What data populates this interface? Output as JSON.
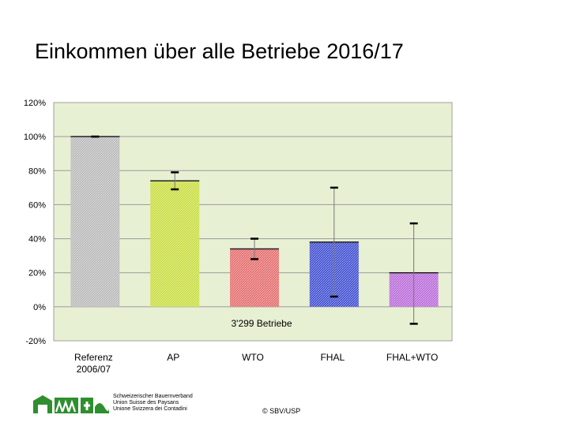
{
  "title": "Einkommen über alle Betriebe 2016/17",
  "chart_data": {
    "type": "bar",
    "categories": [
      "Referenz 2006/07",
      "AP",
      "WTO",
      "FHAL",
      "FHAL+WTO"
    ],
    "category_lines": [
      [
        "Referenz",
        "2006/07"
      ],
      [
        "AP"
      ],
      [
        "WTO"
      ],
      [
        "FHAL"
      ],
      [
        "FHAL+WTO"
      ]
    ],
    "values": [
      100,
      74,
      34,
      38,
      20
    ],
    "error_high": [
      100,
      79,
      40,
      70,
      49
    ],
    "error_low": [
      100,
      69,
      28,
      6,
      -10
    ],
    "colors": [
      "#b8b8b8",
      "#c8dc3c",
      "#e46a6a",
      "#3c4cd0",
      "#b868d8"
    ],
    "ylim": [
      -20,
      120
    ],
    "yticks": [
      "120%",
      "100%",
      "80%",
      "60%",
      "40%",
      "20%",
      "0%",
      "-20%"
    ],
    "ytick_values": [
      120,
      100,
      80,
      60,
      40,
      20,
      0,
      -20
    ],
    "annotation": "3'299 Betriebe",
    "plot_background": "#e8f0d4",
    "grid": true,
    "legend": "none"
  },
  "footer": {
    "org_lines": [
      "Schweizerischer Bauernverband",
      "Union Suisse des Paysans",
      "Unione Svizzera dei Contadini"
    ],
    "copyright": "© SBV/USP",
    "logo_color": "#2f8f2f"
  }
}
